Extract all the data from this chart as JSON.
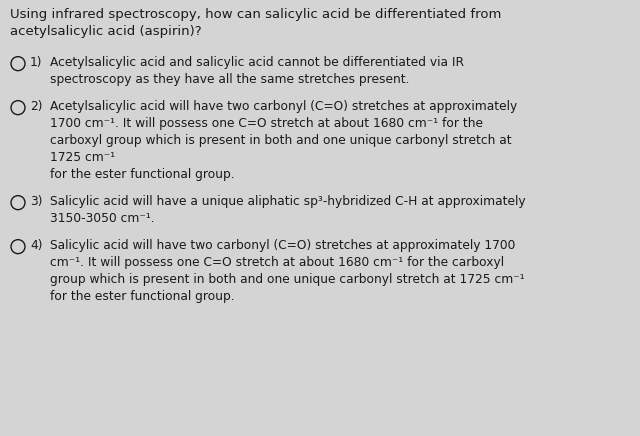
{
  "background_color": "#d4d4d4",
  "text_color": "#1a1a1a",
  "question_line1": "Using infrared spectroscopy, how can salicylic acid be differentiated from",
  "question_line2": "acetylsalicylic acid (aspirin)?",
  "font_size_q": 9.5,
  "font_size_opt": 8.8,
  "options": [
    {
      "number": "1)",
      "lines": [
        "Acetylsalicylic acid and salicylic acid cannot be differentiated via IR",
        "spectroscopy as they have all the same stretches present."
      ]
    },
    {
      "number": "2)",
      "lines": [
        "Acetylsalicylic acid will have two carbonyl (C=O) stretches at approximately",
        "1700 cm⁻¹. It will possess one C=O stretch at about 1680 cm⁻¹ for the",
        "carboxyl group which is present in both and one unique carbonyl stretch at",
        "1725 cm⁻¹",
        "for the ester functional group."
      ]
    },
    {
      "number": "3)",
      "lines": [
        "Salicylic acid will have a unique aliphatic sp³-hybridized C-H at approximately",
        "3150-3050 cm⁻¹."
      ]
    },
    {
      "number": "4)",
      "lines": [
        "Salicylic acid will have two carbonyl (C=O) stretches at approximately 1700",
        "cm⁻¹. It will possess one C=O stretch at about 1680 cm⁻¹ for the carboxyl",
        "group which is present in both and one unique carbonyl stretch at 1725 cm⁻¹",
        "for the ester functional group."
      ]
    }
  ]
}
